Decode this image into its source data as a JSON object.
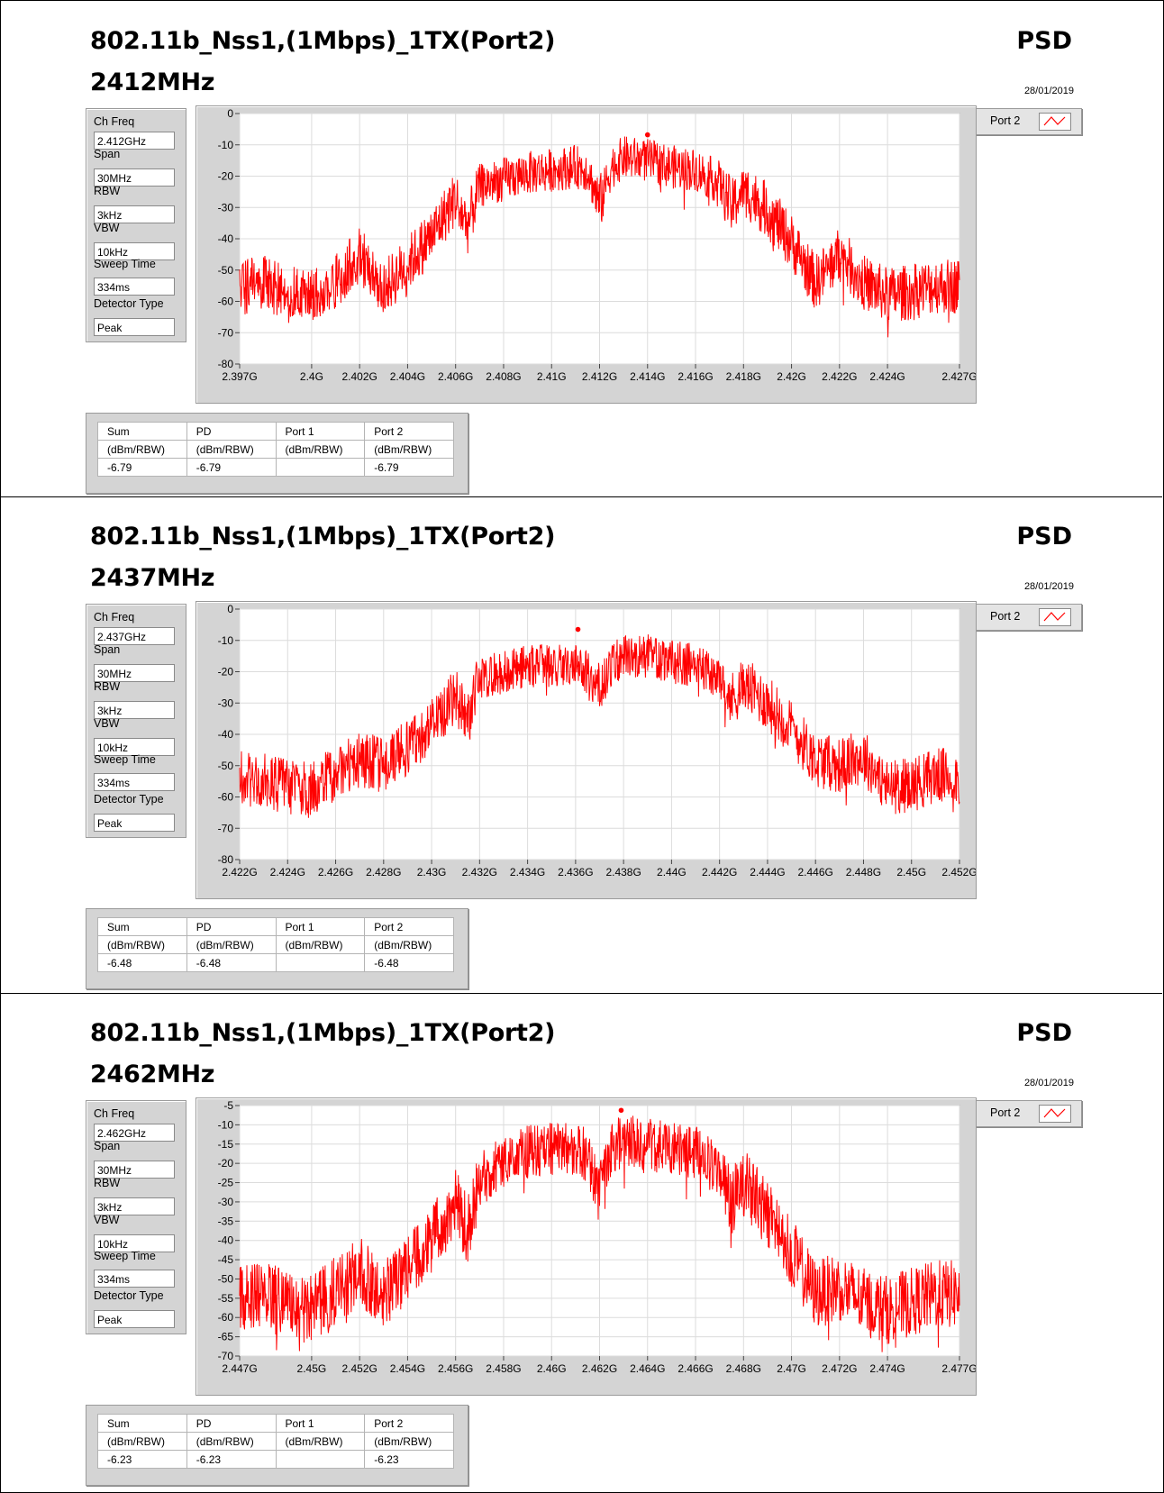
{
  "panels": [
    {
      "title": "802.11b_Nss1,(1Mbps)_1TX(Port2)",
      "mode": "PSD",
      "freq_heading": "2412MHz",
      "date": "28/01/2019",
      "params": [
        {
          "label": "Ch Freq",
          "value": "2.412GHz"
        },
        {
          "label": "Span",
          "value": "30MHz"
        },
        {
          "label": "RBW",
          "value": "3kHz"
        },
        {
          "label": "VBW",
          "value": "10kHz"
        },
        {
          "label": "Sweep Time",
          "value": "334ms"
        },
        {
          "label": "Detector Type",
          "value": "Peak"
        }
      ],
      "legend": {
        "name": "Port 2",
        "color": "#ff0000"
      },
      "table": {
        "headers": [
          "Sum",
          "PD",
          "Port 1",
          "Port 2"
        ],
        "units": [
          "(dBm/RBW)",
          "(dBm/RBW)",
          "(dBm/RBW)",
          "(dBm/RBW)"
        ],
        "values": [
          "-6.79",
          "-6.79",
          "",
          "-6.79"
        ]
      }
    },
    {
      "title": "802.11b_Nss1,(1Mbps)_1TX(Port2)",
      "mode": "PSD",
      "freq_heading": "2437MHz",
      "date": "28/01/2019",
      "params": [
        {
          "label": "Ch Freq",
          "value": "2.437GHz"
        },
        {
          "label": "Span",
          "value": "30MHz"
        },
        {
          "label": "RBW",
          "value": "3kHz"
        },
        {
          "label": "VBW",
          "value": "10kHz"
        },
        {
          "label": "Sweep Time",
          "value": "334ms"
        },
        {
          "label": "Detector Type",
          "value": "Peak"
        }
      ],
      "legend": {
        "name": "Port 2",
        "color": "#ff0000"
      },
      "table": {
        "headers": [
          "Sum",
          "PD",
          "Port 1",
          "Port 2"
        ],
        "units": [
          "(dBm/RBW)",
          "(dBm/RBW)",
          "(dBm/RBW)",
          "(dBm/RBW)"
        ],
        "values": [
          "-6.48",
          "-6.48",
          "",
          "-6.48"
        ]
      }
    },
    {
      "title": "802.11b_Nss1,(1Mbps)_1TX(Port2)",
      "mode": "PSD",
      "freq_heading": "2462MHz",
      "date": "28/01/2019",
      "params": [
        {
          "label": "Ch Freq",
          "value": "2.462GHz"
        },
        {
          "label": "Span",
          "value": "30MHz"
        },
        {
          "label": "RBW",
          "value": "3kHz"
        },
        {
          "label": "VBW",
          "value": "10kHz"
        },
        {
          "label": "Sweep Time",
          "value": "334ms"
        },
        {
          "label": "Detector Type",
          "value": "Peak"
        }
      ],
      "legend": {
        "name": "Port 2",
        "color": "#ff0000"
      },
      "table": {
        "headers": [
          "Sum",
          "PD",
          "Port 1",
          "Port 2"
        ],
        "units": [
          "(dBm/RBW)",
          "(dBm/RBW)",
          "(dBm/RBW)",
          "(dBm/RBW)"
        ],
        "values": [
          "-6.23",
          "-6.23",
          "",
          "-6.23"
        ]
      }
    }
  ],
  "chart_data": [
    {
      "type": "line",
      "xlim": [
        2.397,
        2.427
      ],
      "ylim": [
        -80,
        0
      ],
      "x_ticks": [
        2.397,
        2.4,
        2.402,
        2.404,
        2.406,
        2.408,
        2.41,
        2.412,
        2.414,
        2.416,
        2.418,
        2.42,
        2.422,
        2.424,
        2.427
      ],
      "x_tick_labels": [
        "2.397G",
        "2.4G",
        "2.402G",
        "2.404G",
        "2.406G",
        "2.408G",
        "2.41G",
        "2.412G",
        "2.414G",
        "2.416G",
        "2.418G",
        "2.42G",
        "2.422G",
        "2.424G",
        "2.427G"
      ],
      "y_ticks": [
        0,
        -10,
        -20,
        -30,
        -40,
        -50,
        -60,
        -70,
        -80
      ],
      "y_tick_labels": [
        "0",
        "-10",
        "-20",
        "-30",
        "-40",
        "-50",
        "-60",
        "-70",
        "-80"
      ],
      "grid": true,
      "series": [
        {
          "name": "Port 2",
          "color": "#ff0000",
          "x": [
            2.397,
            2.398,
            2.399,
            2.4,
            2.401,
            2.402,
            2.403,
            2.404,
            2.405,
            2.406,
            2.4065,
            2.407,
            2.408,
            2.409,
            2.41,
            2.411,
            2.4115,
            2.412,
            2.4125,
            2.413,
            2.414,
            2.415,
            2.416,
            2.417,
            2.4175,
            2.418,
            2.419,
            2.42,
            2.421,
            2.422,
            2.423,
            2.424,
            2.425,
            2.426,
            2.427
          ],
          "y": [
            -56,
            -54,
            -58,
            -58,
            -54,
            -45,
            -56,
            -48,
            -39,
            -27,
            -36,
            -23,
            -21,
            -19,
            -18,
            -17,
            -18,
            -29,
            -17,
            -14,
            -15,
            -17,
            -18,
            -22,
            -30,
            -24,
            -31,
            -41,
            -54,
            -45,
            -54,
            -58,
            -57,
            -55,
            -55
          ]
        }
      ],
      "marker": {
        "x": 2.414,
        "y": -6.79
      }
    },
    {
      "type": "line",
      "xlim": [
        2.422,
        2.452
      ],
      "ylim": [
        -80,
        0
      ],
      "x_ticks": [
        2.422,
        2.424,
        2.426,
        2.428,
        2.43,
        2.432,
        2.434,
        2.436,
        2.438,
        2.44,
        2.442,
        2.444,
        2.446,
        2.448,
        2.45,
        2.452
      ],
      "x_tick_labels": [
        "2.422G",
        "2.424G",
        "2.426G",
        "2.428G",
        "2.43G",
        "2.432G",
        "2.434G",
        "2.436G",
        "2.438G",
        "2.44G",
        "2.442G",
        "2.444G",
        "2.446G",
        "2.448G",
        "2.45G",
        "2.452G"
      ],
      "y_ticks": [
        0,
        -10,
        -20,
        -30,
        -40,
        -50,
        -60,
        -70,
        -80
      ],
      "y_tick_labels": [
        "0",
        "-10",
        "-20",
        "-30",
        "-40",
        "-50",
        "-60",
        "-70",
        "-80"
      ],
      "grid": true,
      "series": [
        {
          "name": "Port 2",
          "color": "#ff0000",
          "x": [
            2.422,
            2.423,
            2.424,
            2.425,
            2.426,
            2.427,
            2.428,
            2.429,
            2.43,
            2.431,
            2.4315,
            2.432,
            2.433,
            2.434,
            2.435,
            2.436,
            2.4365,
            2.437,
            2.4375,
            2.438,
            2.439,
            2.44,
            2.441,
            2.442,
            2.4425,
            2.443,
            2.444,
            2.445,
            2.446,
            2.447,
            2.448,
            2.449,
            2.45,
            2.451,
            2.452
          ],
          "y": [
            -54,
            -55,
            -57,
            -58,
            -52,
            -48,
            -50,
            -44,
            -37,
            -28,
            -34,
            -22,
            -20,
            -18,
            -18,
            -18,
            -20,
            -26,
            -18,
            -15,
            -15,
            -17,
            -18,
            -22,
            -29,
            -24,
            -30,
            -38,
            -48,
            -50,
            -47,
            -57,
            -56,
            -53,
            -54
          ]
        }
      ],
      "marker": {
        "x": 2.4361,
        "y": -6.48
      }
    },
    {
      "type": "line",
      "xlim": [
        2.447,
        2.477
      ],
      "ylim": [
        -70,
        -5
      ],
      "x_ticks": [
        2.447,
        2.45,
        2.452,
        2.454,
        2.456,
        2.458,
        2.46,
        2.462,
        2.464,
        2.466,
        2.468,
        2.47,
        2.472,
        2.474,
        2.477
      ],
      "x_tick_labels": [
        "2.447G",
        "2.45G",
        "2.452G",
        "2.454G",
        "2.456G",
        "2.458G",
        "2.46G",
        "2.462G",
        "2.464G",
        "2.466G",
        "2.468G",
        "2.47G",
        "2.472G",
        "2.474G",
        "2.477G"
      ],
      "y_ticks": [
        -5,
        -10,
        -15,
        -20,
        -25,
        -30,
        -35,
        -40,
        -45,
        -50,
        -55,
        -60,
        -65,
        -70
      ],
      "y_tick_labels": [
        "-5",
        "-10",
        "-15",
        "-20",
        "-25",
        "-30",
        "-35",
        "-40",
        "-45",
        "-50",
        "-55",
        "-60",
        "-65",
        "-70"
      ],
      "grid": true,
      "series": [
        {
          "name": "Port 2",
          "color": "#ff0000",
          "x": [
            2.447,
            2.448,
            2.449,
            2.45,
            2.451,
            2.452,
            2.453,
            2.454,
            2.455,
            2.456,
            2.4565,
            2.457,
            2.458,
            2.459,
            2.46,
            2.461,
            2.4615,
            2.462,
            2.4625,
            2.463,
            2.464,
            2.465,
            2.466,
            2.467,
            2.4675,
            2.468,
            2.469,
            2.47,
            2.471,
            2.472,
            2.473,
            2.474,
            2.475,
            2.476,
            2.477
          ],
          "y": [
            -55,
            -54,
            -57,
            -58,
            -53,
            -48,
            -54,
            -47,
            -40,
            -30,
            -38,
            -24,
            -20,
            -17,
            -16,
            -16,
            -18,
            -28,
            -16,
            -14,
            -15,
            -16,
            -17,
            -22,
            -30,
            -25,
            -33,
            -43,
            -54,
            -52,
            -56,
            -58,
            -56,
            -54,
            -54
          ]
        }
      ],
      "marker": {
        "x": 2.4629,
        "y": -6.23
      }
    }
  ]
}
